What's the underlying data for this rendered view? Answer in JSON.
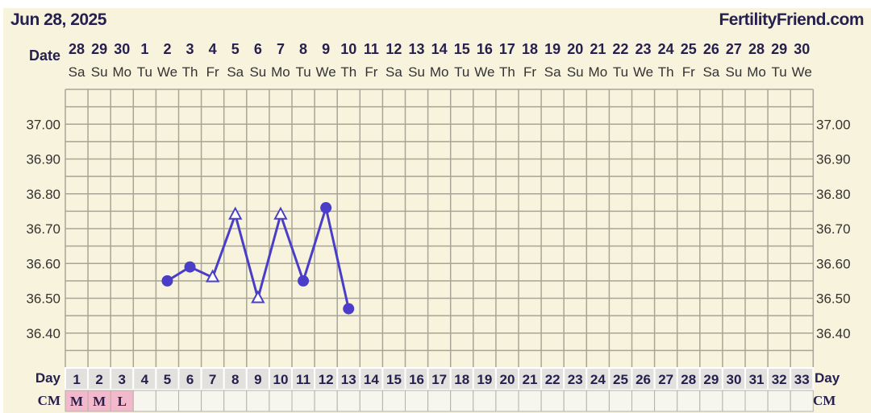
{
  "header": {
    "date": "Jun 28, 2025",
    "site": "FertilityFriend.com"
  },
  "chart_data": {
    "type": "line",
    "row_labels": {
      "date": "Date",
      "day": "Day",
      "cm": "CM"
    },
    "dates": [
      "28",
      "29",
      "30",
      "1",
      "2",
      "3",
      "4",
      "5",
      "6",
      "7",
      "8",
      "9",
      "10",
      "11",
      "12",
      "13",
      "14",
      "15",
      "16",
      "17",
      "18",
      "19",
      "20",
      "21",
      "22",
      "23",
      "24",
      "25",
      "26",
      "27",
      "28",
      "29",
      "30"
    ],
    "weekdays": [
      "Sa",
      "Su",
      "Mo",
      "Tu",
      "We",
      "Th",
      "Fr",
      "Sa",
      "Su",
      "Mo",
      "Tu",
      "We",
      "Th",
      "Fr",
      "Sa",
      "Su",
      "Mo",
      "Tu",
      "We",
      "Th",
      "Fr",
      "Sa",
      "Su",
      "Mo",
      "Tu",
      "We",
      "Th",
      "Fr",
      "Sa",
      "Su",
      "Mo",
      "Tu",
      "We"
    ],
    "days": [
      "1",
      "2",
      "3",
      "4",
      "5",
      "6",
      "7",
      "8",
      "9",
      "10",
      "11",
      "12",
      "13",
      "14",
      "15",
      "16",
      "17",
      "18",
      "19",
      "20",
      "21",
      "22",
      "23",
      "24",
      "25",
      "26",
      "27",
      "28",
      "29",
      "30",
      "31",
      "32",
      "33"
    ],
    "cm": [
      "M",
      "M",
      "L",
      "",
      "",
      "",
      "",
      "",
      "",
      "",
      "",
      "",
      "",
      "",
      "",
      "",
      "",
      "",
      "",
      "",
      "",
      "",
      "",
      "",
      "",
      "",
      "",
      "",
      "",
      "",
      "",
      "",
      ""
    ],
    "ylim": [
      36.3,
      37.1
    ],
    "yticks": [
      "37.00",
      "36.90",
      "36.80",
      "36.70",
      "36.60",
      "36.50",
      "36.40"
    ],
    "grid": true,
    "series": [
      {
        "points": [
          {
            "day": 5,
            "temp": 36.55,
            "marker": "filled-circle"
          },
          {
            "day": 6,
            "temp": 36.59,
            "marker": "filled-circle"
          },
          {
            "day": 7,
            "temp": 36.56,
            "marker": "open-triangle"
          },
          {
            "day": 8,
            "temp": 36.74,
            "marker": "open-triangle"
          },
          {
            "day": 9,
            "temp": 36.5,
            "marker": "open-triangle"
          },
          {
            "day": 10,
            "temp": 36.74,
            "marker": "open-triangle"
          },
          {
            "day": 11,
            "temp": 36.55,
            "marker": "filled-circle"
          },
          {
            "day": 12,
            "temp": 36.76,
            "marker": "filled-circle"
          },
          {
            "day": 13,
            "temp": 36.47,
            "marker": "filled-circle"
          }
        ]
      }
    ],
    "colors": {
      "line": "#4a3ec8",
      "text": "#26204f",
      "grid": "#a9a596",
      "background": "#f8f3dc",
      "day_row": "#e2e1dd",
      "cm_row": "#f6f5ee",
      "cm_highlight": "#f2b8cc"
    }
  }
}
